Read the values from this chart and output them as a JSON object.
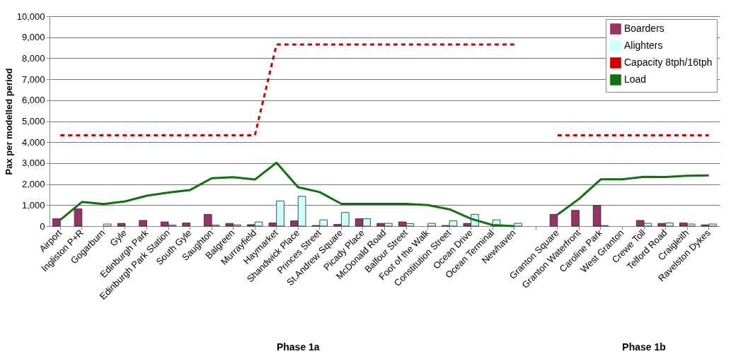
{
  "chart_data": {
    "type": "bar",
    "ylabel": "Pax per modelled period",
    "categories": [
      "Airport",
      "Ingliston P+R",
      "Gogarburn",
      "Gyle",
      "Edinburgh Park",
      "Edinburgh Park Station",
      "South Gyle",
      "Saughton",
      "Balgreen",
      "Murrayfield",
      "Haymarket",
      "Shandwick Place",
      "Princes Street",
      "St.Andrew Square",
      "Picady Place",
      "McDonald Road",
      "Balfour Street",
      "Foot of the Walk",
      "Constitution Street",
      "Ocean Drive",
      "Ocean Terminal",
      "Newhaven",
      null,
      "Granton Square",
      "Granton Waterfront",
      "Caroline Park",
      "West Granton",
      "Crewe Toll",
      "Telford Road",
      "Craigleith",
      "Ravelston Dykes"
    ],
    "series": [
      {
        "name": "Boarders",
        "color": "#993366",
        "values": [
          350,
          820,
          0,
          130,
          270,
          200,
          150,
          560,
          130,
          70,
          150,
          250,
          30,
          80,
          350,
          130,
          200,
          0,
          30,
          130,
          0,
          0,
          null,
          560,
          750,
          980,
          0,
          270,
          130,
          150,
          60
        ]
      },
      {
        "name": "Alighters",
        "color": "#ccffff",
        "values": [
          0,
          0,
          100,
          0,
          0,
          50,
          0,
          50,
          60,
          200,
          1200,
          1420,
          300,
          650,
          350,
          130,
          120,
          130,
          250,
          560,
          300,
          130,
          null,
          0,
          0,
          30,
          0,
          130,
          150,
          100,
          100
        ]
      },
      {
        "name": "Capacity 8tph/16tph",
        "type": "line",
        "color": "#cc0000",
        "line_style": "dashed",
        "values": [
          4330,
          4330,
          4330,
          4330,
          4330,
          4330,
          4330,
          4330,
          4330,
          4330,
          8650,
          8650,
          8650,
          8650,
          8650,
          8650,
          8650,
          8650,
          8650,
          8650,
          8650,
          8650,
          null,
          4330,
          4330,
          4330,
          4330,
          4330,
          4330,
          4330,
          4330
        ]
      },
      {
        "name": "Load",
        "type": "line",
        "color": "#127012",
        "line_style": "solid",
        "values": [
          300,
          1150,
          1050,
          1180,
          1450,
          1600,
          1720,
          2280,
          2330,
          2220,
          3020,
          1850,
          1620,
          1060,
          1060,
          1060,
          1060,
          1000,
          800,
          350,
          50,
          0,
          null,
          550,
          1300,
          2230,
          2230,
          2350,
          2340,
          2400,
          2420
        ]
      }
    ],
    "ylim": [
      0,
      10000
    ],
    "yticks": [
      0,
      {
        "value": 1000,
        "label": "1,000"
      },
      {
        "value": 2000,
        "label": "2,000"
      },
      {
        "value": 3000,
        "label": "3,000"
      },
      {
        "value": 4000,
        "label": "4,000"
      },
      {
        "value": 5000,
        "label": "5,000"
      },
      {
        "value": 6000,
        "label": "6,000"
      },
      {
        "value": 7000,
        "label": "7,000"
      },
      {
        "value": 8000,
        "label": "8,000"
      },
      {
        "value": 9000,
        "label": "9,000"
      },
      {
        "value": 10000,
        "label": "10,000"
      }
    ],
    "grid": "y",
    "legend": "top right",
    "marker": "none",
    "annotations": [
      "Phase 1a",
      "Phase 1b"
    ]
  }
}
